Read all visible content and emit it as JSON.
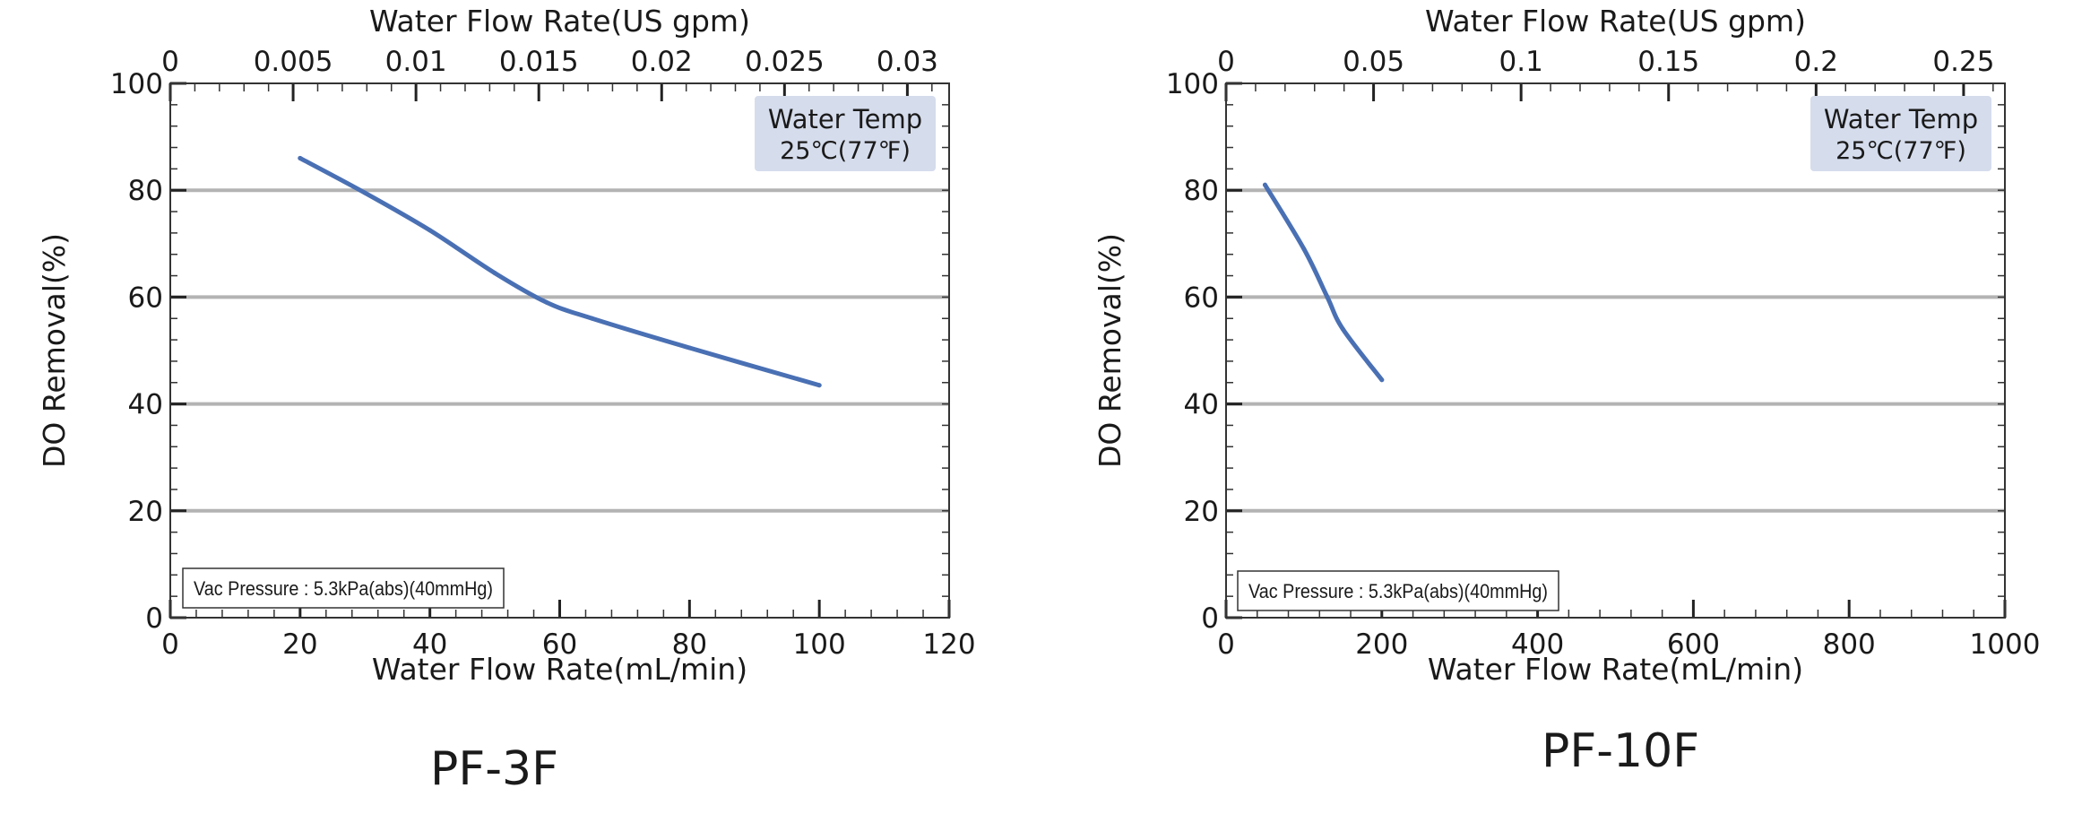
{
  "charts": [
    {
      "title": "PF-3F",
      "x_label": "Water Flow Rate(mL/min)",
      "x2_label": "Water Flow Rate(US gpm)",
      "y_label": "DO Removal(%)",
      "temp_note": [
        "Water Temp",
        "25℃(77℉)"
      ],
      "vac_note": "Vac Pressure : 5.3kPa(abs)(40mmHg)"
    },
    {
      "title": "PF-10F",
      "x_label": "Water Flow Rate(mL/min)",
      "x2_label": "Water Flow Rate(US gpm)",
      "y_label": "DO Removal(%)",
      "temp_note": [
        "Water Temp",
        "25℃(77℉)"
      ],
      "vac_note": "Vac Pressure : 5.3kPa(abs)(40mmHg)"
    }
  ],
  "chart_data": [
    {
      "type": "line",
      "title": "PF-3F",
      "xlabel": "Water Flow Rate(mL/min)",
      "x2label": "Water Flow Rate(US gpm)",
      "ylabel": "DO Removal(%)",
      "xlim": [
        0,
        120
      ],
      "x_ticks": [
        0,
        20,
        40,
        60,
        80,
        100,
        120
      ],
      "x2lim": [
        0,
        0.0317
      ],
      "x2_ticks": [
        0,
        0.005,
        0.01,
        0.015,
        0.02,
        0.025,
        0.03
      ],
      "x2_tick_labels": [
        "0",
        "0.005",
        "0.01",
        "0.015",
        "0.02",
        "0.025",
        "0.03"
      ],
      "ylim": [
        0,
        100
      ],
      "y_ticks": [
        0,
        20,
        40,
        60,
        80,
        100
      ],
      "grid": "horizontal",
      "series": [
        {
          "x": [
            20,
            30,
            40,
            50,
            58,
            65,
            80,
            100
          ],
          "y": [
            86,
            79.5,
            72.5,
            64.5,
            59,
            56,
            50.5,
            43.5
          ]
        }
      ],
      "line_color": "#4a70b4",
      "note_bg": "#d5dcec"
    },
    {
      "type": "line",
      "title": "PF-10F",
      "xlabel": "Water Flow Rate(mL/min)",
      "x2label": "Water Flow Rate(US gpm)",
      "ylabel": "DO Removal(%)",
      "xlim": [
        0,
        1000
      ],
      "x_ticks": [
        0,
        200,
        400,
        600,
        800,
        1000
      ],
      "x2lim": [
        0,
        0.264
      ],
      "x2_ticks": [
        0,
        0.05,
        0.1,
        0.15,
        0.2,
        0.25
      ],
      "x2_tick_labels": [
        "0",
        "0.05",
        "0.1",
        "0.15",
        "0.2",
        "0.25"
      ],
      "ylim": [
        0,
        100
      ],
      "y_ticks": [
        0,
        20,
        40,
        60,
        80,
        100
      ],
      "grid": "horizontal",
      "series": [
        {
          "x": [
            50,
            100,
            130,
            150,
            200
          ],
          "y": [
            81,
            69,
            60,
            54,
            44.5
          ]
        }
      ],
      "line_color": "#4a70b4",
      "note_bg": "#d5dcec"
    }
  ]
}
